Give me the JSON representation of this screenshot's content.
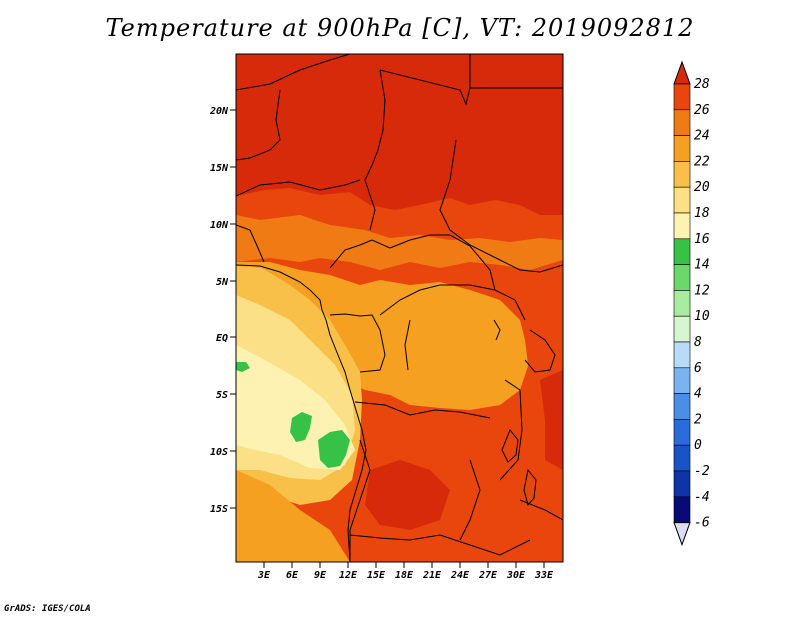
{
  "title": "Temperature at 900hPa [C], VT: 2019092812",
  "credit": "GrADS: IGES/COLA",
  "map": {
    "lon_labels": [
      "3E",
      "6E",
      "9E",
      "12E",
      "15E",
      "18E",
      "21E",
      "24E",
      "27E",
      "30E",
      "33E"
    ],
    "lat_labels": [
      "20N",
      "15N",
      "10N",
      "5N",
      "EQ",
      "5S",
      "10S",
      "15S"
    ]
  },
  "colorbar": {
    "labels": [
      "28",
      "26",
      "24",
      "22",
      "20",
      "18",
      "16",
      "14",
      "12",
      "10",
      "8",
      "6",
      "4",
      "2",
      "0",
      "-2",
      "-4",
      "-6"
    ],
    "colors": [
      "#d62a0a",
      "#e8460c",
      "#f07a14",
      "#f5a020",
      "#f8c048",
      "#fce087",
      "#fdf2b2",
      "#36c246",
      "#6cd86c",
      "#a8eca0",
      "#d6f5d0",
      "#b8dcf8",
      "#7ab4ee",
      "#4a8ee8",
      "#2a6cdc",
      "#1a52c8",
      "#0e34a8",
      "#080a78",
      "#081064"
    ],
    "top_arrow_color": "#d62a0a",
    "bottom_arrow_color": "#dcdcf5"
  }
}
